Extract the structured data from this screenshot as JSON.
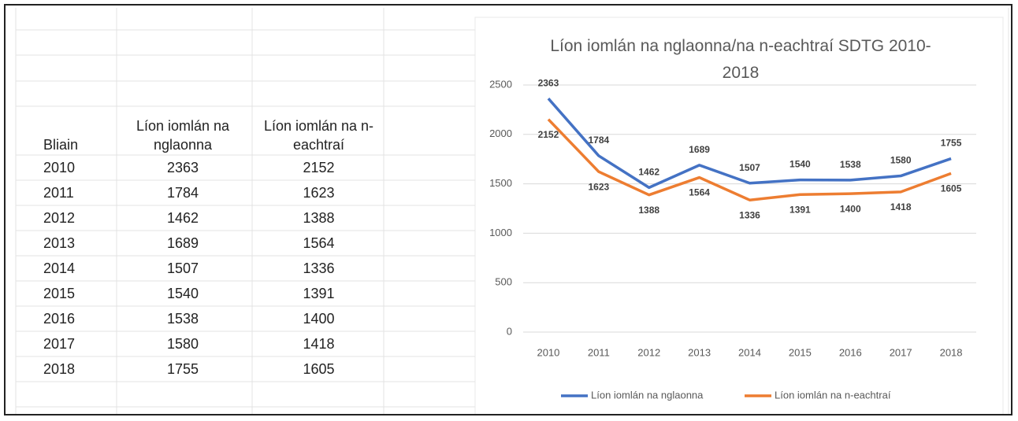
{
  "table": {
    "header": [
      "Bliain",
      "Líon iomlán na nglaonna",
      "Líon iomlán na n-eachtraí"
    ],
    "rows": [
      [
        2010,
        2363,
        2152
      ],
      [
        2011,
        1784,
        1623
      ],
      [
        2012,
        1462,
        1388
      ],
      [
        2013,
        1689,
        1564
      ],
      [
        2014,
        1507,
        1336
      ],
      [
        2015,
        1540,
        1391
      ],
      [
        2016,
        1538,
        1400
      ],
      [
        2017,
        1580,
        1418
      ],
      [
        2018,
        1755,
        1605
      ]
    ]
  },
  "chart_data": {
    "type": "line",
    "title": "Líon iomlán na nglaonna/na n-eachtraí SDTG 2010-2018",
    "categories": [
      "2010",
      "2011",
      "2012",
      "2013",
      "2014",
      "2015",
      "2016",
      "2017",
      "2018"
    ],
    "series": [
      {
        "name": "Líon iomlán na nglaonna",
        "color": "#4472c4",
        "values": [
          2363,
          1784,
          1462,
          1689,
          1507,
          1540,
          1538,
          1580,
          1755
        ]
      },
      {
        "name": "Líon iomlán na n-eachtraí",
        "color": "#ed7d31",
        "values": [
          2152,
          1623,
          1388,
          1564,
          1336,
          1391,
          1400,
          1418,
          1605
        ]
      }
    ],
    "ylim": [
      0,
      2500
    ],
    "yticks": [
      0,
      500,
      1000,
      1500,
      2000,
      2500
    ],
    "grid": true,
    "legend": "bottom"
  }
}
